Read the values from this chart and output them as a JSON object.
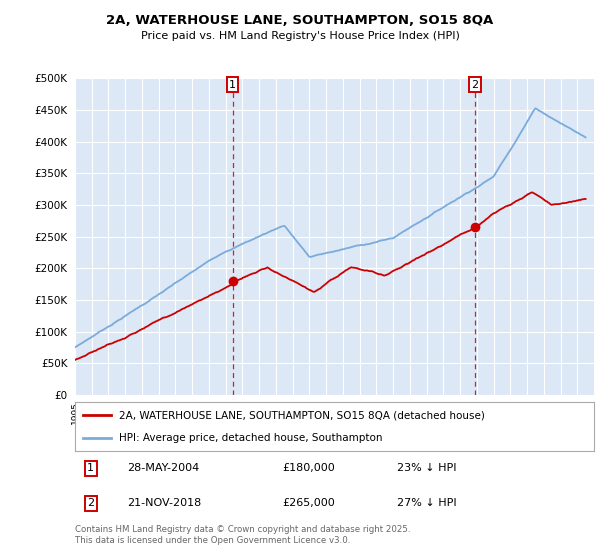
{
  "title_line1": "2A, WATERHOUSE LANE, SOUTHAMPTON, SO15 8QA",
  "title_line2": "Price paid vs. HM Land Registry's House Price Index (HPI)",
  "background_color": "#ffffff",
  "plot_bg_color": "#dce8f5",
  "grid_color": "#ffffff",
  "red_line_color": "#cc0000",
  "blue_line_color": "#7aabdb",
  "sale1_date_num": 2004.41,
  "sale2_date_num": 2018.89,
  "sale1_price": 180000,
  "sale2_price": 265000,
  "legend_red": "2A, WATERHOUSE LANE, SOUTHAMPTON, SO15 8QA (detached house)",
  "legend_blue": "HPI: Average price, detached house, Southampton",
  "note1_label": "1",
  "note1_date": "28-MAY-2004",
  "note1_price": "£180,000",
  "note1_hpi": "23% ↓ HPI",
  "note2_label": "2",
  "note2_date": "21-NOV-2018",
  "note2_price": "£265,000",
  "note2_hpi": "27% ↓ HPI",
  "footer": "Contains HM Land Registry data © Crown copyright and database right 2025.\nThis data is licensed under the Open Government Licence v3.0.",
  "ylim_max": 500000,
  "ylim_min": 0,
  "xmin": 1995,
  "xmax": 2026
}
